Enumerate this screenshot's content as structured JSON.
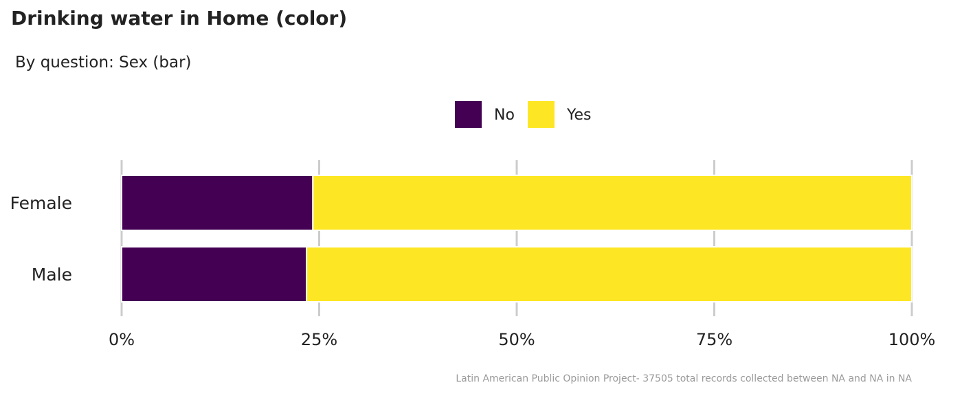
{
  "title": "Drinking water in Home (color)",
  "subtitle": "By question: Sex (bar)",
  "caption": "Latin American Public Opinion Project- 37505 total records collected between NA and NA in  NA",
  "colors": {
    "No": "#440154",
    "Yes": "#fde725",
    "grid": "#cccccc",
    "text": "#222222"
  },
  "chart_data": {
    "type": "bar",
    "orientation": "horizontal",
    "stacked": true,
    "categories": [
      "Female",
      "Male"
    ],
    "series": [
      {
        "name": "No",
        "values": [
          24.2,
          23.4
        ]
      },
      {
        "name": "Yes",
        "values": [
          75.8,
          76.6
        ]
      }
    ],
    "xlim": [
      0,
      100
    ],
    "xticks": [
      "0%",
      "25%",
      "50%",
      "75%",
      "100%"
    ],
    "xlabel": "",
    "ylabel": "",
    "legend_position": "top",
    "grid": "vertical-major"
  }
}
